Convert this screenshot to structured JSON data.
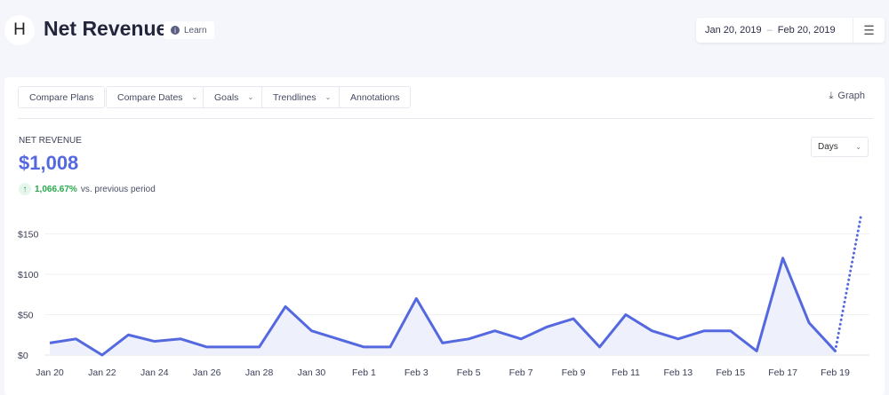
{
  "header": {
    "logo": "H",
    "title": "Net Revenue",
    "learn": "Learn",
    "date_start": "Jan 20, 2019",
    "date_sep": "–",
    "date_end": "Feb 20, 2019",
    "menu_icon": "☰"
  },
  "toolbar": {
    "compare_plans": "Compare Plans",
    "compare_dates": "Compare Dates",
    "goals": "Goals",
    "trendlines": "Trendlines",
    "annotations": "Annotations",
    "graph": "Graph",
    "chevron": "⌄"
  },
  "summary": {
    "label": "NET REVENUE",
    "value": "$1,008",
    "change": "1,066.67%",
    "change_suffix": "vs. previous period",
    "arrow": "↑"
  },
  "interval": {
    "selected": "Days"
  },
  "colors": {
    "line": "#5468e0",
    "fill": "#eef0fb",
    "positive": "#2aa84d"
  },
  "chart_data": {
    "type": "area",
    "title": "Net Revenue",
    "xlabel": "",
    "ylabel": "",
    "ylim": [
      0,
      160
    ],
    "y_ticks": [
      {
        "v": 0,
        "label": "$0"
      },
      {
        "v": 50,
        "label": "$50"
      },
      {
        "v": 100,
        "label": "$100"
      },
      {
        "v": 150,
        "label": "$150"
      }
    ],
    "x_tick_labels": [
      "Jan 20",
      "Jan 22",
      "Jan 24",
      "Jan 26",
      "Jan 28",
      "Jan 30",
      "Feb 1",
      "Feb 3",
      "Feb 5",
      "Feb 7",
      "Feb 9",
      "Feb 11",
      "Feb 13",
      "Feb 15",
      "Feb 17",
      "Feb 19"
    ],
    "x": [
      "Jan 20",
      "Jan 21",
      "Jan 22",
      "Jan 23",
      "Jan 24",
      "Jan 25",
      "Jan 26",
      "Jan 27",
      "Jan 28",
      "Jan 29",
      "Jan 30",
      "Jan 31",
      "Feb 1",
      "Feb 2",
      "Feb 3",
      "Feb 4",
      "Feb 5",
      "Feb 6",
      "Feb 7",
      "Feb 8",
      "Feb 9",
      "Feb 10",
      "Feb 11",
      "Feb 12",
      "Feb 13",
      "Feb 14",
      "Feb 15",
      "Feb 16",
      "Feb 17",
      "Feb 18",
      "Feb 19",
      "Feb 20"
    ],
    "series": [
      {
        "name": "Net Revenue",
        "values": [
          15,
          20,
          0,
          25,
          17,
          20,
          10,
          10,
          10,
          60,
          30,
          20,
          10,
          10,
          70,
          15,
          20,
          30,
          20,
          35,
          45,
          10,
          50,
          30,
          20,
          30,
          30,
          5,
          120,
          40,
          5,
          175
        ],
        "projected_from_index": 30
      }
    ],
    "grid": true
  }
}
